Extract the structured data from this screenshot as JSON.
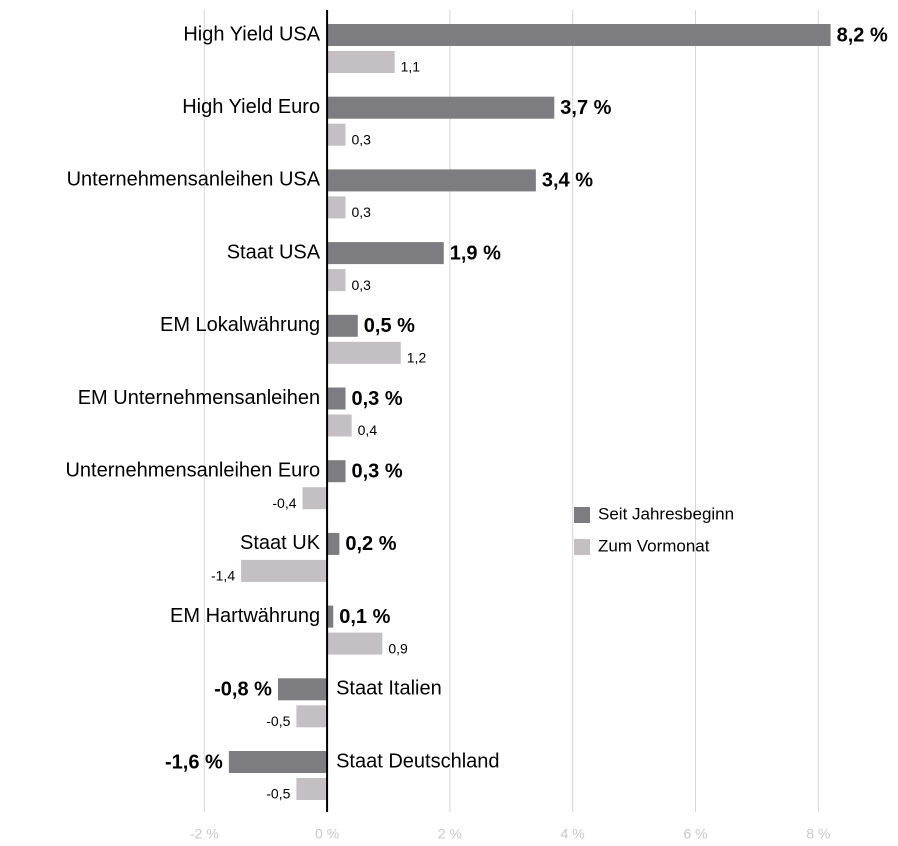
{
  "chart_data": {
    "type": "hbar",
    "categories": [
      "High Yield USA",
      "High Yield Euro",
      "Unternehmensanleihen USA",
      "Staat USA",
      "EM Lokalwährung",
      "EM Unternehmensanleihen",
      "Unternehmensanleihen Euro",
      "Staat UK",
      "EM Hartwährung",
      "Staat Italien",
      "Staat Deutschland"
    ],
    "series": [
      {
        "name": "Seit Jahresbeginn",
        "color": "#7d7c80",
        "values": [
          8.2,
          3.7,
          3.4,
          1.9,
          0.5,
          0.3,
          0.3,
          0.2,
          0.1,
          -0.8,
          -1.6
        ],
        "value_labels": [
          "8,2 %",
          "3,7 %",
          "3,4 %",
          "1,9 %",
          "0,5 %",
          "0,3 %",
          "0,3 %",
          "0,2 %",
          "0,1 %",
          "-0,8 %",
          "-1,6 %"
        ]
      },
      {
        "name": "Zum Vormonat",
        "color": "#c4bfc3",
        "values": [
          1.1,
          0.3,
          0.3,
          0.3,
          1.2,
          0.4,
          -0.4,
          -1.4,
          0.9,
          -0.5,
          -0.5
        ],
        "value_labels": [
          "1,1",
          "0,3",
          "0,3",
          "0,3",
          "1,2",
          "0,4",
          "-0,4",
          "-1,4",
          "0,9",
          "-0,5",
          "-0,5"
        ]
      }
    ],
    "xlim": [
      -2.2,
      9.2
    ],
    "xticks": [
      {
        "value": -2,
        "label": "-2 %"
      },
      {
        "value": 0,
        "label": "0 %"
      },
      {
        "value": 2,
        "label": "2 %"
      },
      {
        "value": 4,
        "label": "4 %"
      },
      {
        "value": 6,
        "label": "6 %"
      },
      {
        "value": 8,
        "label": "8 %"
      }
    ],
    "grid": true
  }
}
